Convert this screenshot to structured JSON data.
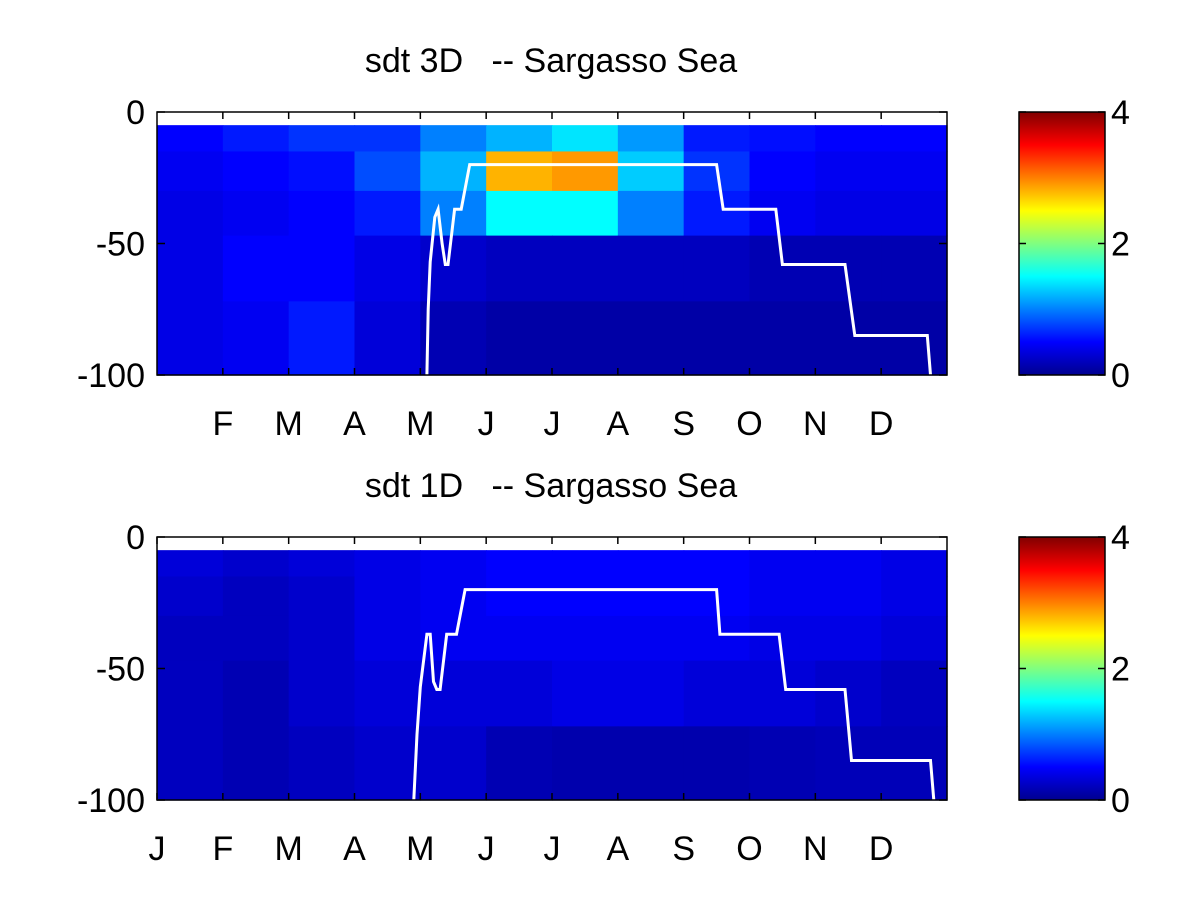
{
  "chart_data": [
    {
      "type": "heatmap",
      "title": "sdt 3D   -- Sargasso Sea",
      "xlabel": "",
      "ylabel": "",
      "y_ticks": [
        "0",
        "-50",
        "-100"
      ],
      "y_tick_values": [
        0,
        -50,
        -100
      ],
      "x_ticks": [
        "F",
        "M",
        "A",
        "M",
        "J",
        "J",
        "A",
        "S",
        "O",
        "N",
        "D"
      ],
      "x_tick_values": [
        1.5,
        2.5,
        3.5,
        4.5,
        5.5,
        6.5,
        7.5,
        8.5,
        9.5,
        10.5,
        11.5
      ],
      "xlim": [
        0.5,
        12.5
      ],
      "ylim": [
        -100,
        0
      ],
      "colorbar_range": [
        0,
        4
      ],
      "colorbar_ticks": [
        "0",
        "2",
        "4"
      ],
      "colormap": "jet",
      "line_color": "#ffffff",
      "depth_bands": [
        {
          "top": -5,
          "bottom": -15
        },
        {
          "top": -15,
          "bottom": -30
        },
        {
          "top": -30,
          "bottom": -47
        },
        {
          "top": -47,
          "bottom": -72
        },
        {
          "top": -72,
          "bottom": -100
        }
      ],
      "cell_months": [
        1,
        2,
        3,
        4,
        5,
        6,
        7,
        8,
        9,
        10,
        11,
        12
      ],
      "cell_values": [
        [
          0.5,
          0.6,
          0.7,
          0.7,
          1.0,
          1.2,
          1.4,
          1.1,
          0.6,
          0.55,
          0.5,
          0.5
        ],
        [
          0.45,
          0.5,
          0.55,
          0.8,
          1.2,
          2.8,
          2.9,
          1.3,
          0.7,
          0.5,
          0.45,
          0.45
        ],
        [
          0.4,
          0.45,
          0.5,
          0.6,
          1.0,
          1.5,
          1.5,
          1.0,
          0.6,
          0.45,
          0.4,
          0.4
        ],
        [
          0.4,
          0.5,
          0.5,
          0.4,
          0.3,
          0.25,
          0.25,
          0.25,
          0.25,
          0.2,
          0.2,
          0.2
        ],
        [
          0.4,
          0.45,
          0.6,
          0.35,
          0.2,
          0.15,
          0.15,
          0.15,
          0.15,
          0.15,
          0.15,
          0.15
        ]
      ],
      "mixed_layer_depth": {
        "x": [
          4.6,
          4.62,
          4.65,
          4.72,
          4.77,
          4.83,
          4.88,
          4.92,
          5.02,
          5.12,
          5.25,
          5.3,
          9.0,
          9.1,
          9.9,
          10.0,
          10.95,
          11.1,
          12.2,
          12.25
        ],
        "y": [
          -100,
          -75,
          -57,
          -40,
          -37,
          -50,
          -58,
          -58,
          -37,
          -37,
          -20,
          -20,
          -20,
          -37,
          -37,
          -58,
          -58,
          -85,
          -85,
          -100
        ]
      }
    },
    {
      "type": "heatmap",
      "title": "sdt 1D   -- Sargasso Sea",
      "xlabel": "",
      "ylabel": "",
      "y_ticks": [
        "0",
        "-50",
        "-100"
      ],
      "y_tick_values": [
        0,
        -50,
        -100
      ],
      "x_ticks": [
        "J",
        "F",
        "M",
        "A",
        "M",
        "J",
        "J",
        "A",
        "S",
        "O",
        "N",
        "D"
      ],
      "x_tick_values": [
        0.5,
        1.5,
        2.5,
        3.5,
        4.5,
        5.5,
        6.5,
        7.5,
        8.5,
        9.5,
        10.5,
        11.5
      ],
      "xlim": [
        0.5,
        12.5
      ],
      "ylim": [
        -100,
        0
      ],
      "colorbar_range": [
        0,
        4
      ],
      "colorbar_ticks": [
        "0",
        "2",
        "4"
      ],
      "colormap": "jet",
      "line_color": "#ffffff",
      "depth_bands": [
        {
          "top": -5,
          "bottom": -15
        },
        {
          "top": -15,
          "bottom": -30
        },
        {
          "top": -30,
          "bottom": -47
        },
        {
          "top": -47,
          "bottom": -72
        },
        {
          "top": -72,
          "bottom": -100
        }
      ],
      "cell_months": [
        1,
        2,
        3,
        4,
        5,
        6,
        7,
        8,
        9,
        10,
        11,
        12
      ],
      "cell_values": [
        [
          0.35,
          0.3,
          0.35,
          0.4,
          0.45,
          0.5,
          0.5,
          0.5,
          0.5,
          0.45,
          0.45,
          0.4
        ],
        [
          0.3,
          0.25,
          0.3,
          0.4,
          0.45,
          0.5,
          0.5,
          0.5,
          0.5,
          0.45,
          0.45,
          0.4
        ],
        [
          0.25,
          0.25,
          0.3,
          0.4,
          0.45,
          0.45,
          0.45,
          0.45,
          0.45,
          0.4,
          0.4,
          0.35
        ],
        [
          0.25,
          0.2,
          0.3,
          0.35,
          0.35,
          0.35,
          0.4,
          0.4,
          0.35,
          0.35,
          0.3,
          0.25
        ],
        [
          0.25,
          0.2,
          0.25,
          0.3,
          0.3,
          0.2,
          0.18,
          0.18,
          0.18,
          0.2,
          0.22,
          0.22
        ]
      ],
      "mixed_layer_depth": {
        "x": [
          4.4,
          4.45,
          4.5,
          4.6,
          4.65,
          4.7,
          4.75,
          4.8,
          4.9,
          5.05,
          5.18,
          5.25,
          9.0,
          9.05,
          9.95,
          10.05,
          10.95,
          11.05,
          12.25,
          12.3
        ],
        "y": [
          -100,
          -75,
          -57,
          -37,
          -37,
          -55,
          -58,
          -58,
          -37,
          -37,
          -20,
          -20,
          -20,
          -37,
          -37,
          -58,
          -58,
          -85,
          -85,
          -100
        ]
      }
    }
  ]
}
